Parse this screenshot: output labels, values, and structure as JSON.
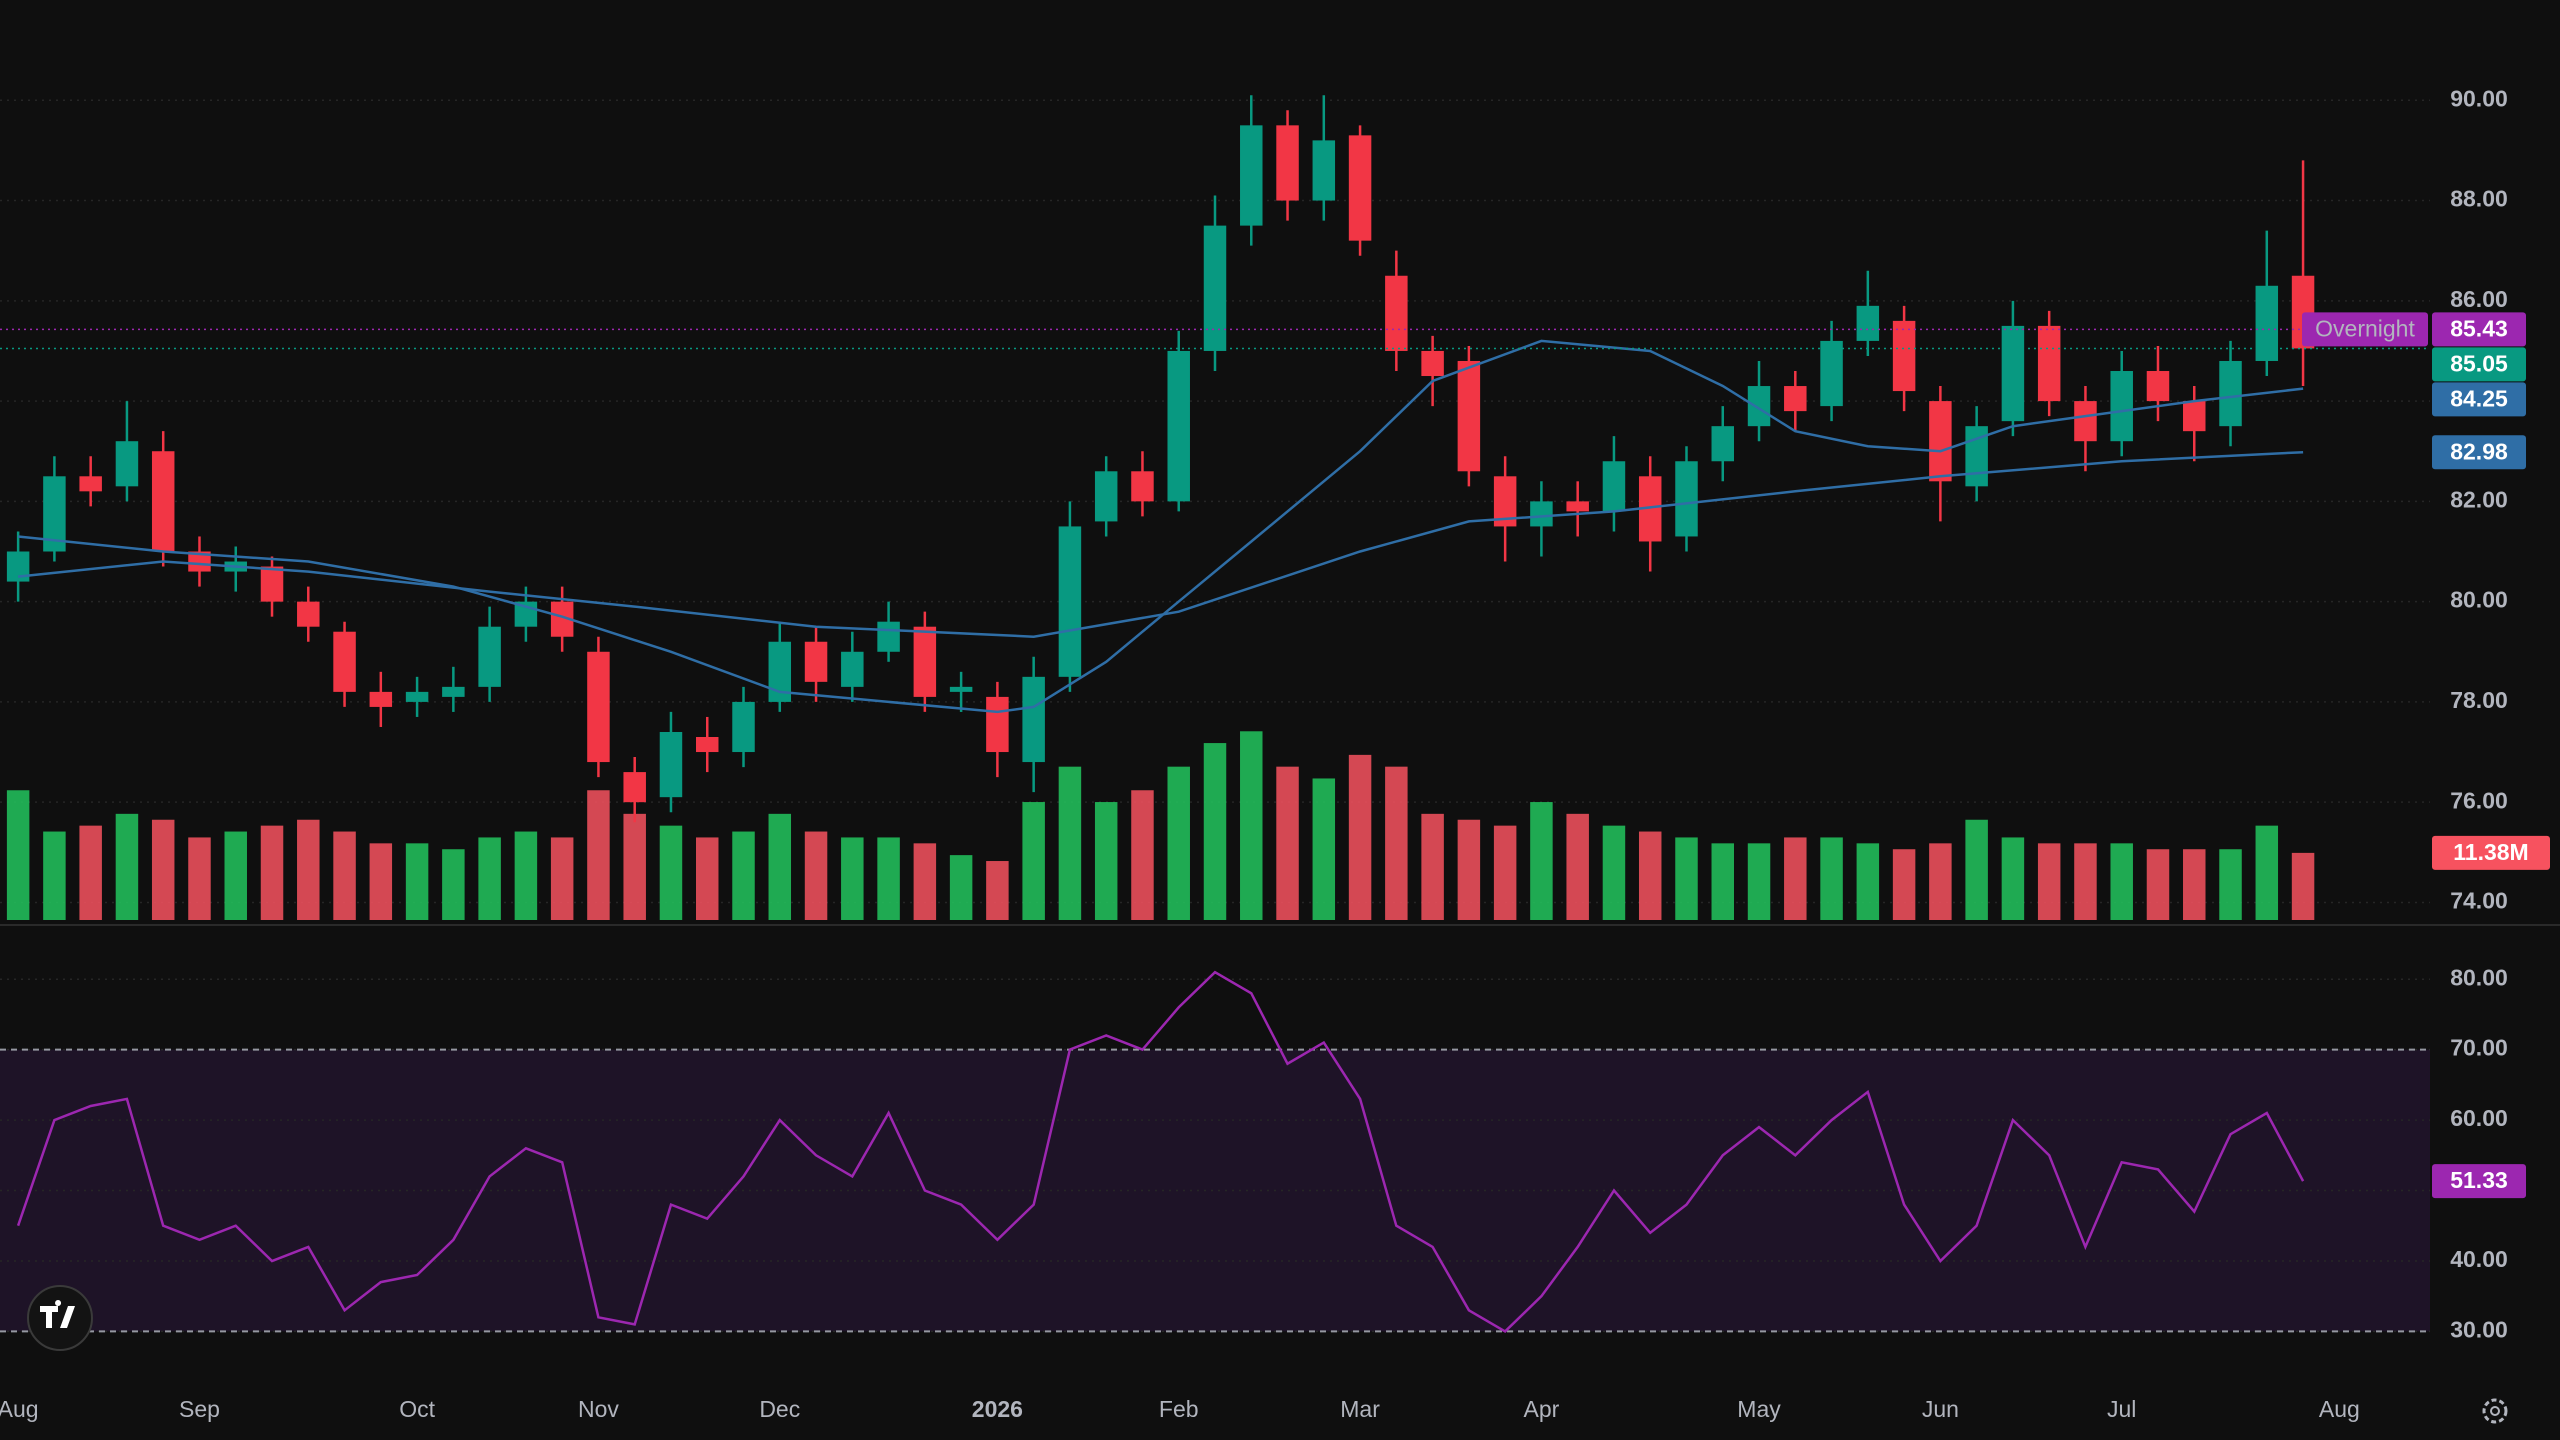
{
  "chart_data": [
    {
      "type": "candlestick",
      "categories": [
        "Aug",
        null,
        null,
        null,
        null,
        "Sep",
        null,
        null,
        null,
        null,
        null,
        "Oct",
        null,
        null,
        null,
        null,
        "Nov",
        null,
        null,
        null,
        null,
        "Dec",
        null,
        null,
        null,
        null,
        null,
        "2026",
        null,
        null,
        null,
        null,
        "Feb",
        null,
        null,
        null,
        null,
        "Mar",
        null,
        null,
        null,
        null,
        "Apr",
        null,
        null,
        null,
        null,
        null,
        "May",
        null,
        null,
        null,
        null,
        "Jun",
        null,
        null,
        null,
        null,
        "Jul",
        null,
        null,
        null,
        null,
        null,
        "Aug"
      ],
      "open": [
        80.4,
        81.0,
        82.5,
        82.3,
        83.0,
        81.0,
        80.6,
        80.7,
        80.0,
        79.4,
        78.2,
        78.0,
        78.1,
        78.3,
        79.5,
        80.0,
        79.0,
        76.6,
        76.1,
        77.3,
        77.0,
        78.0,
        79.2,
        78.3,
        79.0,
        79.5,
        78.2,
        78.1,
        76.8,
        78.5,
        81.6,
        82.6,
        82.0,
        85.0,
        87.5,
        89.5,
        88.0,
        89.3,
        86.5,
        85.0,
        84.8,
        82.5,
        81.5,
        82.0,
        81.8,
        82.5,
        81.3,
        82.8,
        83.5,
        84.3,
        83.9,
        85.2,
        85.6,
        84.0,
        82.3,
        83.6,
        85.5,
        84.0,
        83.2,
        84.6,
        84.0,
        83.5,
        84.8,
        86.5,
        null
      ],
      "high": [
        81.4,
        82.9,
        82.9,
        84.0,
        83.4,
        81.3,
        81.1,
        80.9,
        80.3,
        79.6,
        78.6,
        78.5,
        78.7,
        79.9,
        80.3,
        80.3,
        79.3,
        76.9,
        77.8,
        77.7,
        78.3,
        79.6,
        79.5,
        79.4,
        80.0,
        79.8,
        78.6,
        78.4,
        78.9,
        82.0,
        82.9,
        83.0,
        85.4,
        88.1,
        90.1,
        89.8,
        90.1,
        89.5,
        87.0,
        85.3,
        85.1,
        82.9,
        82.4,
        82.4,
        83.3,
        82.9,
        83.1,
        83.9,
        84.8,
        84.6,
        85.6,
        86.6,
        85.9,
        84.3,
        83.9,
        86.0,
        85.8,
        84.3,
        85.0,
        85.1,
        84.3,
        85.2,
        87.4,
        88.8,
        null
      ],
      "low": [
        80.0,
        80.8,
        81.9,
        82.0,
        80.7,
        80.3,
        80.2,
        79.7,
        79.2,
        77.9,
        77.5,
        77.7,
        77.8,
        78.0,
        79.2,
        79.0,
        76.5,
        75.6,
        75.8,
        76.6,
        76.7,
        77.8,
        78.0,
        78.0,
        78.8,
        77.8,
        77.8,
        76.5,
        76.2,
        78.2,
        81.3,
        81.7,
        81.8,
        84.6,
        87.1,
        87.6,
        87.6,
        86.9,
        84.6,
        83.9,
        82.3,
        80.8,
        80.9,
        81.3,
        81.4,
        80.6,
        81.0,
        82.4,
        83.2,
        83.4,
        83.6,
        84.9,
        83.8,
        81.6,
        82.0,
        83.3,
        83.7,
        82.6,
        82.9,
        83.6,
        82.8,
        83.1,
        84.5,
        84.3,
        null
      ],
      "close": [
        81.0,
        82.5,
        82.2,
        83.2,
        81.0,
        80.6,
        80.8,
        80.0,
        79.5,
        78.2,
        77.9,
        78.2,
        78.3,
        79.5,
        80.0,
        79.3,
        76.8,
        76.0,
        77.4,
        77.0,
        78.0,
        79.2,
        78.4,
        79.0,
        79.6,
        78.1,
        78.3,
        77.0,
        78.5,
        81.5,
        82.6,
        82.0,
        85.0,
        87.5,
        89.5,
        88.0,
        89.2,
        87.2,
        85.0,
        84.5,
        82.6,
        81.5,
        82.0,
        81.8,
        82.8,
        81.2,
        82.8,
        83.5,
        84.3,
        83.8,
        85.2,
        85.9,
        84.2,
        82.4,
        83.5,
        85.5,
        84.0,
        83.2,
        84.6,
        84.0,
        83.4,
        84.8,
        86.3,
        85.05,
        null
      ],
      "up_color": "#089981",
      "down_color": "#f23645",
      "xlim": [
        -0.5,
        66.5
      ],
      "ylim": [
        73.65,
        92.0
      ],
      "yticks": [
        {
          "value": 74,
          "label": "74.00"
        },
        {
          "value": 76,
          "label": "76.00"
        },
        {
          "value": 78,
          "label": "78.00"
        },
        {
          "value": 80,
          "label": "80.00"
        },
        {
          "value": 82,
          "label": "82.00"
        },
        {
          "value": 84,
          "label": "84.00"
        },
        {
          "value": 86,
          "label": "86.00"
        },
        {
          "value": 88,
          "label": "88.00"
        },
        {
          "value": 90,
          "label": "90.00"
        }
      ],
      "grid": true,
      "volume": {
        "values": [
          22,
          15,
          16,
          18,
          17,
          14,
          15,
          16,
          17,
          15,
          13,
          13,
          12,
          14,
          15,
          14,
          22,
          18,
          16,
          14,
          15,
          18,
          15,
          14,
          14,
          13,
          11,
          10,
          20,
          26,
          20,
          22,
          26,
          30,
          32,
          26,
          24,
          28,
          26,
          18,
          17,
          16,
          20,
          18,
          16,
          15,
          14,
          13,
          13,
          14,
          14,
          13,
          12,
          13,
          17,
          14,
          13,
          13,
          13,
          12,
          12,
          12,
          16,
          11.38,
          null
        ],
        "ylim": [
          0,
          156
        ],
        "up_color": "#22c55e",
        "down_color": "#f7525f",
        "last_label": "11.38M"
      },
      "moving_averages": [
        {
          "x": [
            0,
            4,
            8,
            12,
            15,
            18,
            21,
            24,
            27,
            28,
            30,
            32,
            34,
            37,
            39,
            42,
            45,
            47,
            49,
            51,
            53,
            55,
            57,
            60,
            63
          ],
          "values": [
            81.3,
            81.0,
            80.8,
            80.3,
            79.7,
            79.0,
            78.2,
            78.0,
            77.8,
            77.9,
            78.8,
            80.0,
            81.2,
            83.0,
            84.4,
            85.2,
            85.0,
            84.3,
            83.4,
            83.1,
            83.0,
            83.5,
            83.7,
            84.0,
            84.25
          ],
          "color": "#2f6ea6"
        },
        {
          "x": [
            0,
            4,
            8,
            13,
            17,
            22,
            28,
            32,
            37,
            40,
            44,
            49,
            53,
            58,
            63
          ],
          "values": [
            80.5,
            80.8,
            80.6,
            80.2,
            79.9,
            79.5,
            79.3,
            79.8,
            81.0,
            81.6,
            81.8,
            82.2,
            82.5,
            82.8,
            82.98
          ],
          "color": "#2f6ea6"
        }
      ],
      "last_price": 85.05,
      "last_price_color": "#089981",
      "overnight": {
        "label": "Overnight",
        "value": 85.43,
        "color": "#9c27b0"
      }
    },
    {
      "type": "line",
      "values": [
        45,
        60,
        62,
        63,
        45,
        43,
        45,
        40,
        42,
        33,
        37,
        38,
        43,
        52,
        56,
        54,
        32,
        31,
        48,
        46,
        52,
        60,
        55,
        52,
        61,
        50,
        48,
        43,
        48,
        70,
        72,
        70,
        76,
        81,
        78,
        68,
        71,
        63,
        45,
        42,
        33,
        30,
        35,
        42,
        50,
        44,
        48,
        55,
        59,
        55,
        60,
        64,
        48,
        40,
        45,
        60,
        55,
        42,
        54,
        53,
        47,
        58,
        61,
        51.33,
        null
      ],
      "color": "#9c27b0",
      "band": [
        30,
        70
      ],
      "band_color": "#1e1327",
      "ylim": [
        23.1,
        86.7
      ],
      "yticks": [
        {
          "value": 30,
          "label": "30.00"
        },
        {
          "value": 40,
          "label": "40.00"
        },
        {
          "value": 50,
          "label": "50.00"
        },
        {
          "value": 60,
          "label": "60.00"
        },
        {
          "value": 70,
          "label": "70.00"
        },
        {
          "value": 80,
          "label": "80.00"
        }
      ],
      "grid": true
    }
  ]
}
